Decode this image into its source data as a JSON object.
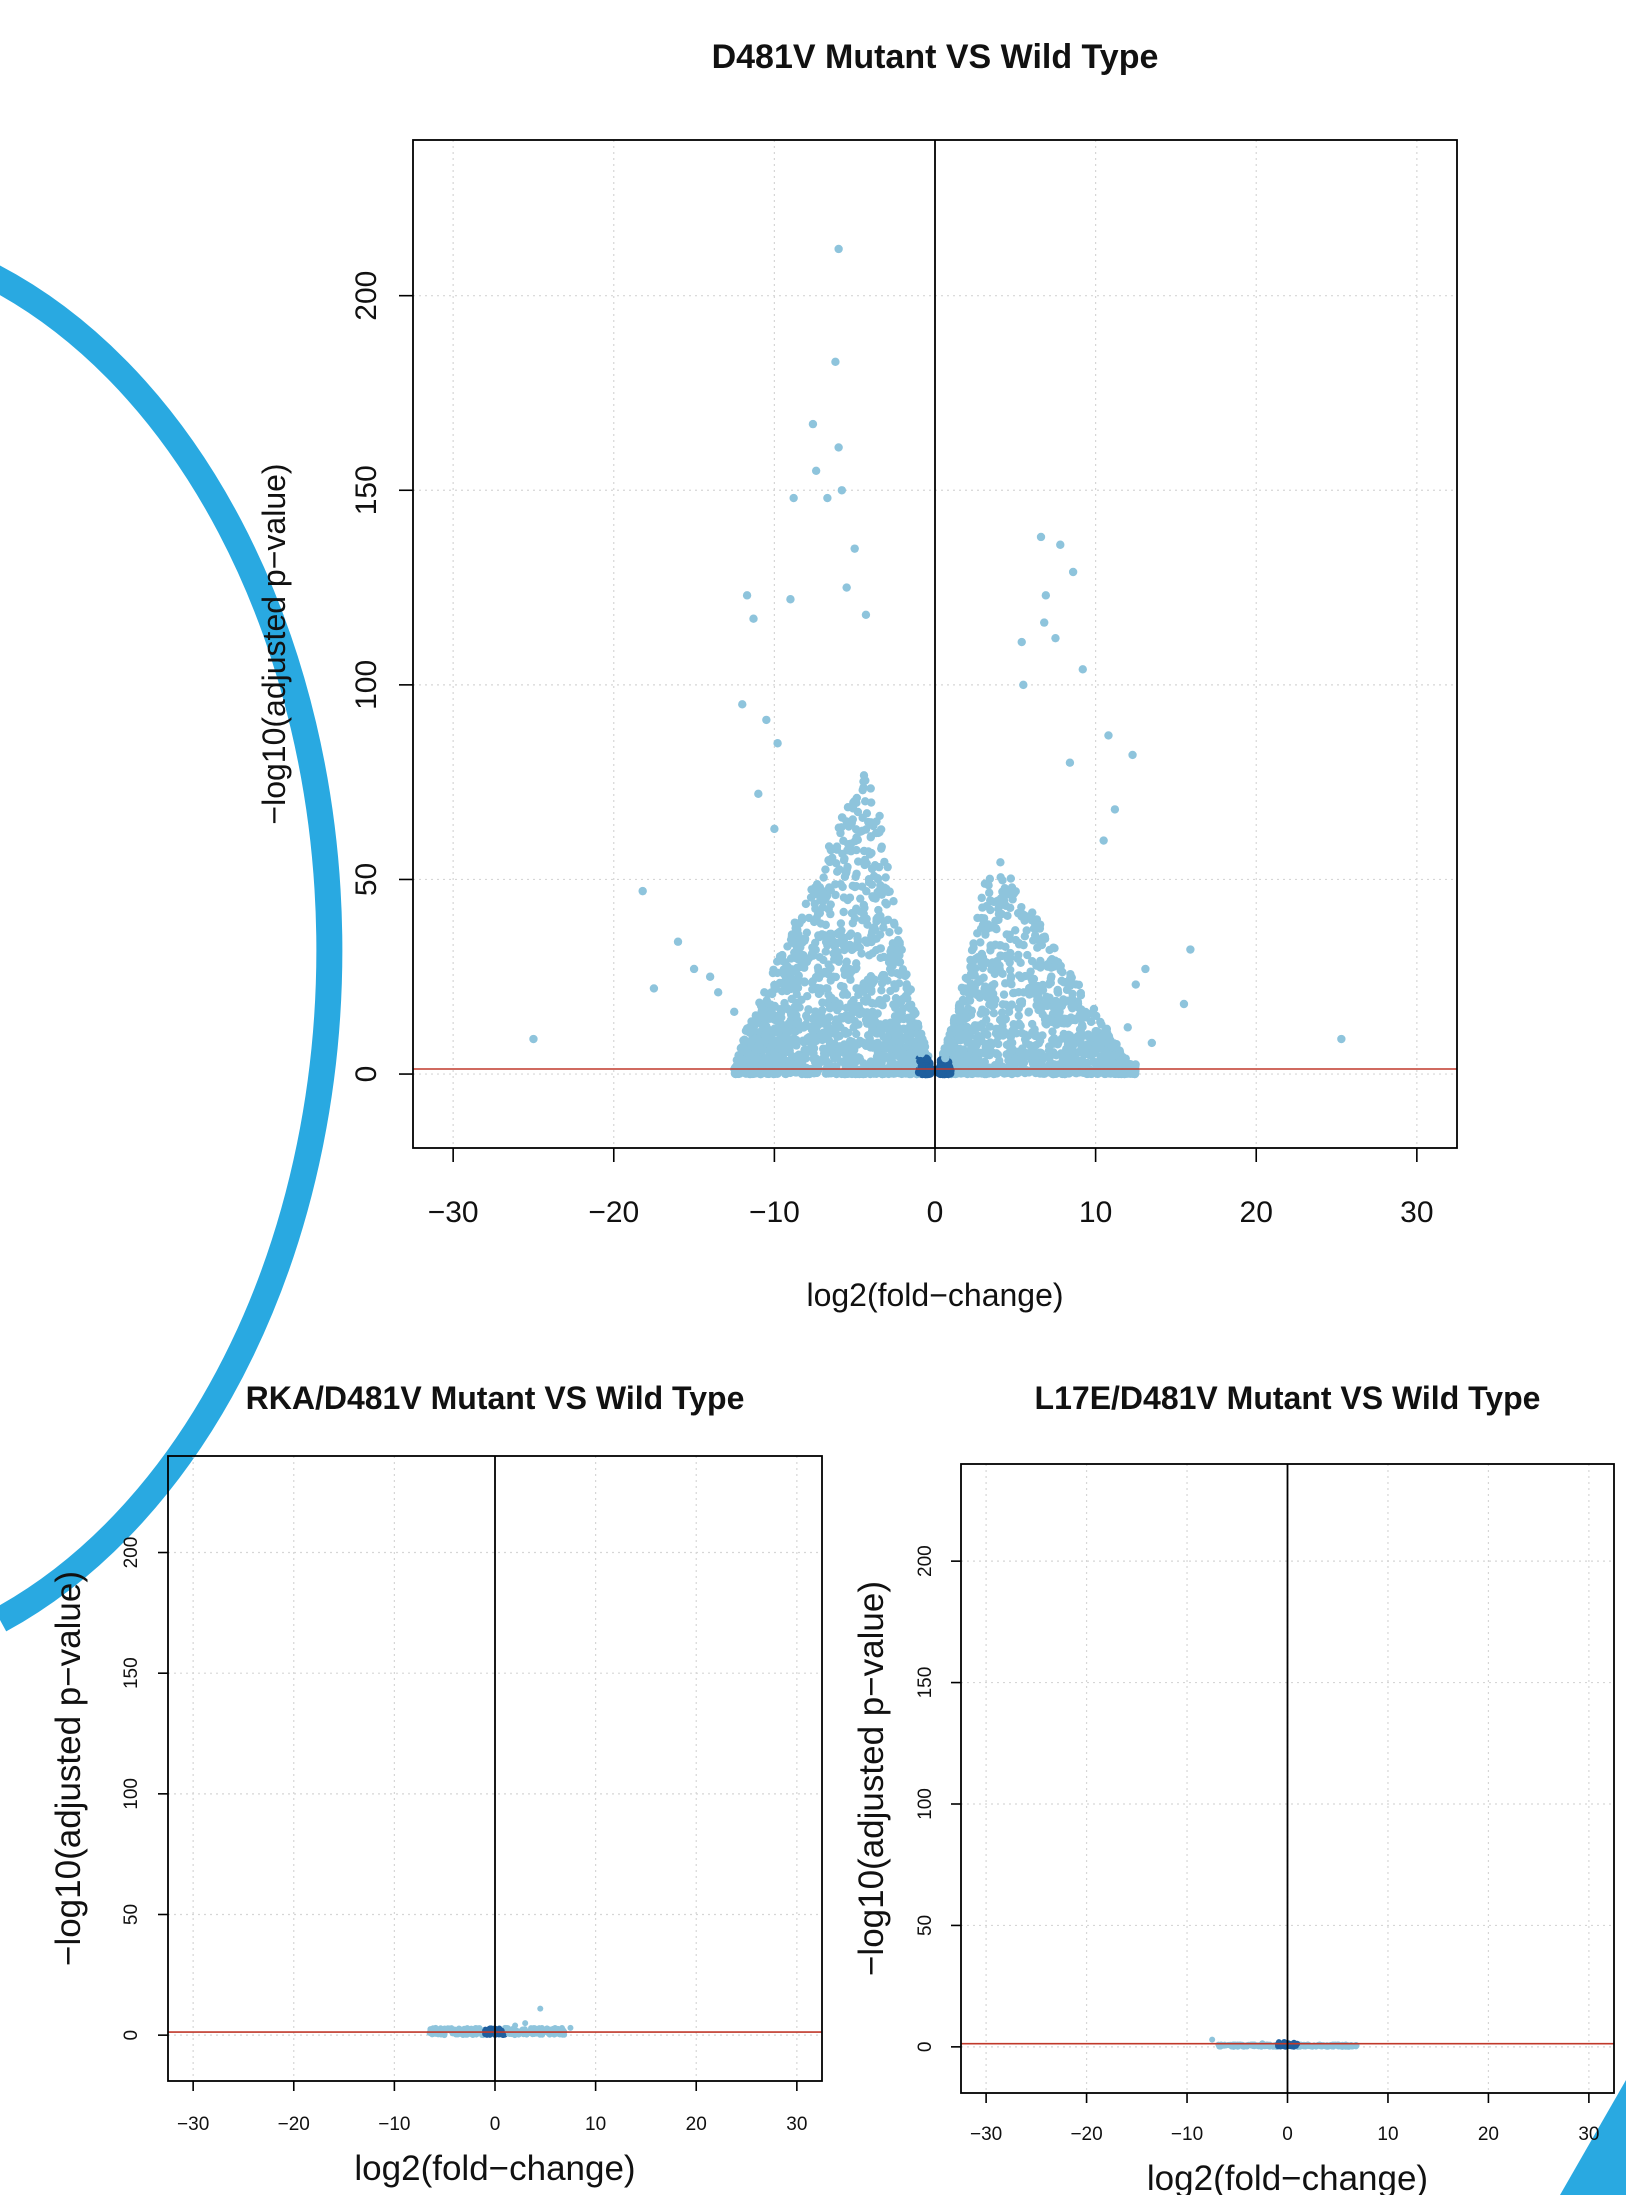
{
  "decoration": {
    "arc_color": "#29a9e1"
  },
  "chart_data": [
    {
      "type": "scatter",
      "title": "D481V Mutant VS Wild Type",
      "xlabel": "log2(fold−change)",
      "ylabel": "−log10(adjusted p−value)",
      "xlim": [
        -32.5,
        32.5
      ],
      "ylim": [
        -19,
        240
      ],
      "xticks": [
        -30,
        -20,
        -10,
        0,
        10,
        20,
        30
      ],
      "xtick_labels": [
        "−30",
        "−20",
        "−10",
        "0",
        "10",
        "20",
        "30"
      ],
      "yticks": [
        0,
        50,
        100,
        150,
        200
      ],
      "ytick_labels": [
        "0",
        "50",
        "100",
        "150",
        "200"
      ],
      "grid": true,
      "threshold_y": 1.3,
      "colors": {
        "point": "#8ec4dc",
        "dense": "#1f5f9e",
        "threshold": "#c0392b",
        "axis": "#000000"
      },
      "points": [
        {
          "x": -6.0,
          "y": 212
        },
        {
          "x": -6.2,
          "y": 183
        },
        {
          "x": -7.6,
          "y": 167
        },
        {
          "x": -6.0,
          "y": 161
        },
        {
          "x": -7.4,
          "y": 155
        },
        {
          "x": -5.8,
          "y": 150
        },
        {
          "x": -8.8,
          "y": 148
        },
        {
          "x": -6.7,
          "y": 148
        },
        {
          "x": -5.0,
          "y": 135
        },
        {
          "x": -5.5,
          "y": 125
        },
        {
          "x": -11.7,
          "y": 123
        },
        {
          "x": -11.3,
          "y": 117
        },
        {
          "x": -9.0,
          "y": 122
        },
        {
          "x": -4.3,
          "y": 118
        },
        {
          "x": -12.0,
          "y": 95
        },
        {
          "x": -10.5,
          "y": 91
        },
        {
          "x": -9.8,
          "y": 85
        },
        {
          "x": -11.0,
          "y": 72
        },
        {
          "x": -10.0,
          "y": 63
        },
        {
          "x": -18.2,
          "y": 47
        },
        {
          "x": -16.0,
          "y": 34
        },
        {
          "x": -15.0,
          "y": 27
        },
        {
          "x": -17.5,
          "y": 22
        },
        {
          "x": -14.0,
          "y": 25
        },
        {
          "x": -13.5,
          "y": 21
        },
        {
          "x": -25.0,
          "y": 9
        },
        {
          "x": -12.5,
          "y": 16
        },
        {
          "x": -11.5,
          "y": 11
        },
        {
          "x": 6.6,
          "y": 138
        },
        {
          "x": 7.8,
          "y": 136
        },
        {
          "x": 8.6,
          "y": 129
        },
        {
          "x": 6.9,
          "y": 123
        },
        {
          "x": 6.8,
          "y": 116
        },
        {
          "x": 5.4,
          "y": 111
        },
        {
          "x": 7.5,
          "y": 112
        },
        {
          "x": 9.2,
          "y": 104
        },
        {
          "x": 5.5,
          "y": 100
        },
        {
          "x": 12.3,
          "y": 82
        },
        {
          "x": 10.8,
          "y": 87
        },
        {
          "x": 8.4,
          "y": 80
        },
        {
          "x": 11.2,
          "y": 68
        },
        {
          "x": 10.5,
          "y": 60
        },
        {
          "x": 15.9,
          "y": 32
        },
        {
          "x": 13.1,
          "y": 27
        },
        {
          "x": 12.5,
          "y": 23
        },
        {
          "x": 15.5,
          "y": 18
        },
        {
          "x": 12.0,
          "y": 12
        },
        {
          "x": 25.3,
          "y": 9
        },
        {
          "x": 13.5,
          "y": 8
        },
        {
          "x": 11.5,
          "y": 6
        }
      ],
      "clouds": [
        {
          "xmin": -12.5,
          "xmax": -0.3,
          "peak_x": -4.5,
          "ymax": 78,
          "side": "left",
          "n": 1500
        },
        {
          "xmin": 0.3,
          "xmax": 12.5,
          "peak_x": 4.0,
          "ymax": 55,
          "side": "right",
          "n": 1200
        }
      ]
    },
    {
      "type": "scatter",
      "title": "RKA/D481V Mutant VS Wild Type",
      "xlabel": "log2(fold−change)",
      "ylabel": "−log10(adjusted p−value)",
      "xlim": [
        -32.5,
        32.5
      ],
      "ylim": [
        -19,
        240
      ],
      "xticks": [
        -30,
        -20,
        -10,
        0,
        10,
        20,
        30
      ],
      "xtick_labels": [
        "−30",
        "−20",
        "−10",
        "0",
        "10",
        "20",
        "30"
      ],
      "yticks": [
        0,
        50,
        100,
        150,
        200
      ],
      "ytick_labels": [
        "0",
        "50",
        "100",
        "150",
        "200"
      ],
      "grid": true,
      "threshold_y": 1.3,
      "colors": {
        "point": "#8ec4dc",
        "dense": "#1f5f9e",
        "threshold": "#c0392b",
        "axis": "#000000"
      },
      "points": [
        {
          "x": 4.5,
          "y": 11
        },
        {
          "x": 3.0,
          "y": 5
        },
        {
          "x": 7.5,
          "y": 3
        },
        {
          "x": 2.0,
          "y": 4
        },
        {
          "x": -1.5,
          "y": 2
        },
        {
          "x": 1.0,
          "y": 3
        },
        {
          "x": 6.0,
          "y": 1
        },
        {
          "x": -6.5,
          "y": 1
        }
      ],
      "clouds": [
        {
          "xmin": -6.5,
          "xmax": 7.0,
          "peak_x": 0,
          "ymax": 3,
          "side": "both",
          "n": 260
        }
      ]
    },
    {
      "type": "scatter",
      "title": "L17E/D481V Mutant VS Wild Type",
      "xlabel": "log2(fold−change)",
      "ylabel": "−log10(adjusted p−value)",
      "xlim": [
        -32.5,
        32.5
      ],
      "ylim": [
        -19,
        240
      ],
      "xticks": [
        -30,
        -20,
        -10,
        0,
        10,
        20,
        30
      ],
      "xtick_labels": [
        "−30",
        "−20",
        "−10",
        "0",
        "10",
        "20",
        "30"
      ],
      "yticks": [
        0,
        50,
        100,
        150,
        200
      ],
      "ytick_labels": [
        "0",
        "50",
        "100",
        "150",
        "200"
      ],
      "grid": true,
      "threshold_y": 1.3,
      "colors": {
        "point": "#8ec4dc",
        "dense": "#1f5f9e",
        "threshold": "#c0392b",
        "axis": "#000000"
      },
      "points": [
        {
          "x": -7.5,
          "y": 3
        },
        {
          "x": -2.5,
          "y": 1.5
        },
        {
          "x": 6.5,
          "y": 0.5
        }
      ],
      "clouds": [
        {
          "xmin": -7.0,
          "xmax": 7.0,
          "peak_x": 0,
          "ymax": 1,
          "side": "both",
          "n": 220
        }
      ]
    }
  ]
}
